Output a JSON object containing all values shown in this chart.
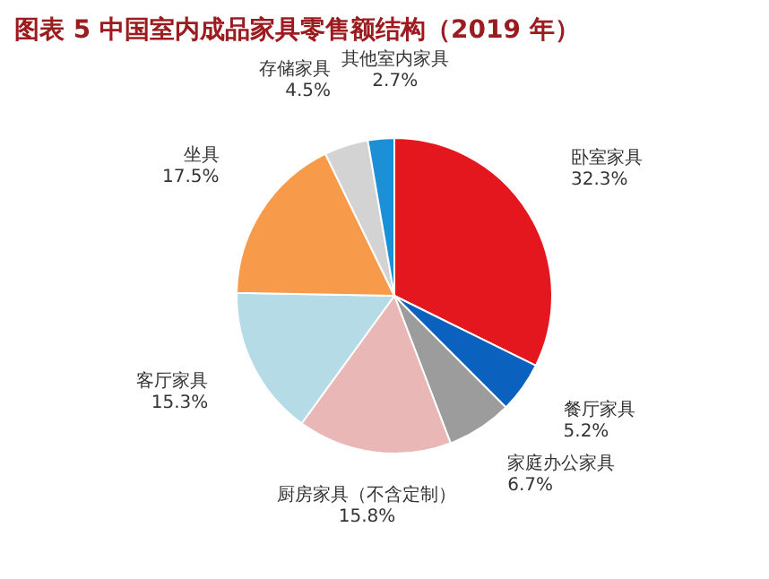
{
  "chart_data": {
    "type": "pie",
    "title": "图表 5   中国室内成品家具零售额结构（2019 年）",
    "categories": [
      "卧室家具",
      "餐厅家具",
      "家庭办公家具",
      "厨房家具（不含定制）",
      "客厅家具",
      "坐具",
      "存储家具",
      "其他室内家具"
    ],
    "values": [
      32.3,
      5.2,
      6.7,
      15.8,
      15.3,
      17.5,
      4.5,
      2.7
    ],
    "value_labels": [
      "32.3%",
      "5.2%",
      "6.7%",
      "15.8%",
      "15.3%",
      "17.5%",
      "4.5%",
      "2.7%"
    ],
    "colors": [
      "#e3171d",
      "#0a62be",
      "#9c9c9c",
      "#e8b7b6",
      "#b5dbe6",
      "#f79a4a",
      "#d3d3d3",
      "#1c8fd6"
    ]
  }
}
